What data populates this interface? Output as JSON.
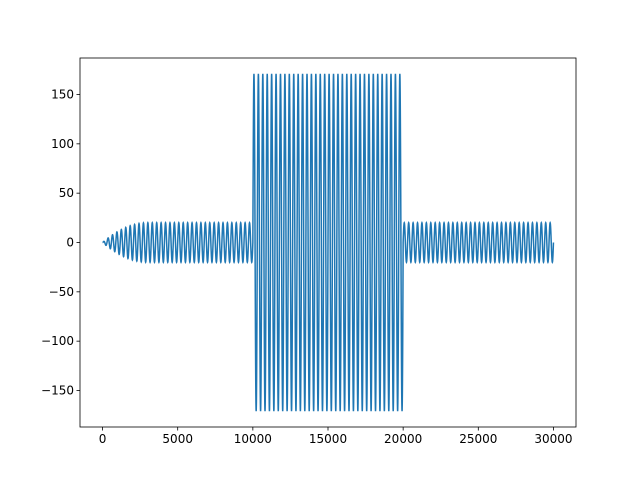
{
  "chart_data": {
    "type": "line",
    "title": "",
    "xlabel": "",
    "ylabel": "",
    "xlim": [
      -1500,
      31500
    ],
    "ylim": [
      -187,
      187
    ],
    "grid": false,
    "xticks": [
      0,
      5000,
      10000,
      15000,
      20000,
      25000,
      30000
    ],
    "yticks": [
      -150,
      -100,
      -50,
      0,
      50,
      100,
      150
    ],
    "xtick_labels": [
      "0",
      "5000",
      "10000",
      "15000",
      "20000",
      "25000",
      "30000"
    ],
    "ytick_labels": [
      "−150",
      "−100",
      "−50",
      "0",
      "50",
      "100",
      "150"
    ],
    "line_color": "#1f77b4",
    "series": [
      {
        "segments": [
          {
            "x_start": 0,
            "x_end": 10000,
            "amplitude_start": 0,
            "amplitude_end": 20,
            "cycles": 34,
            "ramp_until": 3000
          },
          {
            "x_start": 10000,
            "x_end": 20000,
            "amplitude": 171,
            "cycles": 34
          },
          {
            "x_start": 20000,
            "x_end": 30000,
            "amplitude": 20,
            "cycles": 34
          }
        ]
      }
    ]
  }
}
